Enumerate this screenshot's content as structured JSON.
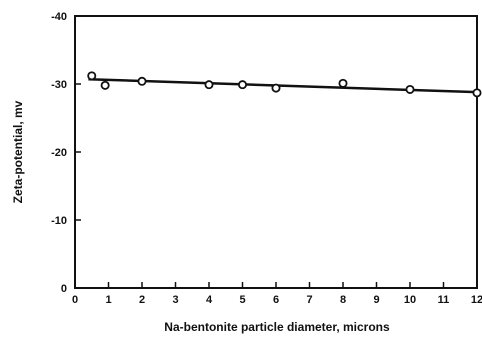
{
  "chart_data": {
    "type": "scatter",
    "title": "",
    "xlabel": "Na-bentonite particle diameter, microns",
    "ylabel": "Zeta-potential,  mv",
    "xlim": [
      0,
      12
    ],
    "ylim": [
      0,
      -40
    ],
    "x_ticks": [
      0,
      1,
      2,
      3,
      4,
      5,
      6,
      7,
      8,
      9,
      10,
      11,
      12
    ],
    "y_ticks": [
      0,
      -10,
      -20,
      -30,
      -40
    ],
    "x_tick_labels": [
      "0",
      "1",
      "2",
      "3",
      "4",
      "5",
      "6",
      "7",
      "8",
      "9",
      "10",
      "11",
      "12"
    ],
    "y_tick_labels": [
      "0",
      "-10",
      "-20",
      "-30",
      "-40"
    ],
    "grid": false,
    "series": [
      {
        "marker": "open-circle",
        "points": [
          {
            "x": 0.5,
            "y": -31.2
          },
          {
            "x": 0.9,
            "y": -29.8
          },
          {
            "x": 2.0,
            "y": -30.4
          },
          {
            "x": 4.0,
            "y": -29.9
          },
          {
            "x": 5.0,
            "y": -29.9
          },
          {
            "x": 6.0,
            "y": -29.4
          },
          {
            "x": 8.0,
            "y": -30.1
          },
          {
            "x": 10.0,
            "y": -29.2
          },
          {
            "x": 12.0,
            "y": -28.7
          }
        ]
      }
    ],
    "fit_line": {
      "x": [
        0.4,
        12.0
      ],
      "y": [
        -30.7,
        -28.8
      ]
    },
    "colors": {
      "ink": "#111111",
      "background": "#ffffff"
    }
  }
}
